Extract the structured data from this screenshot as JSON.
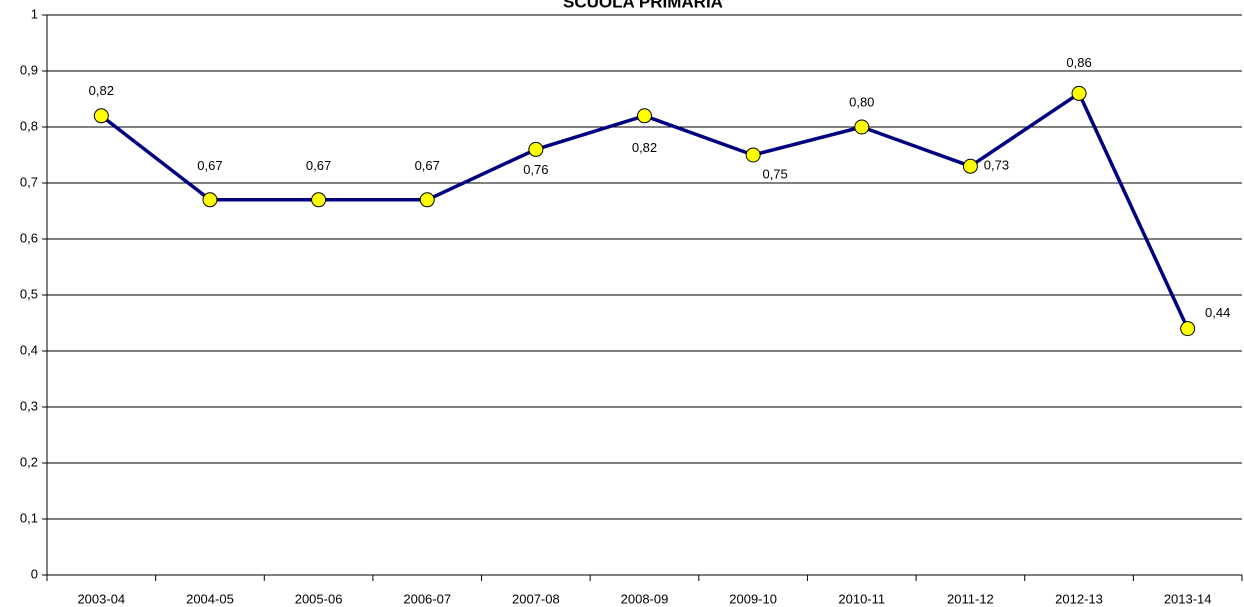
{
  "chart_data": {
    "type": "line",
    "title": "SCUOLA PRIMARIA",
    "categories": [
      "2003-04",
      "2004-05",
      "2005-06",
      "2006-07",
      "2007-08",
      "2008-09",
      "2009-10",
      "2010-11",
      "2011-12",
      "2012-13",
      "2013-14"
    ],
    "series": [
      {
        "name": "SCUOLA PRIMARIA",
        "color": "#000080",
        "marker_color": "#ffff00",
        "values": [
          0.82,
          0.67,
          0.67,
          0.67,
          0.76,
          0.82,
          0.75,
          0.8,
          0.73,
          0.86,
          0.44
        ],
        "value_labels": [
          "0,82",
          "0,67",
          "0,67",
          "0,67",
          "0,76",
          "0,82",
          "0,75",
          "0,80",
          "0,73",
          "0,86",
          "0,44"
        ]
      }
    ],
    "ylim": [
      0,
      1
    ],
    "yticks": [
      0,
      {
        "value": 0.1,
        "label": "0,1"
      },
      {
        "value": 0.2,
        "label": "0,2"
      },
      {
        "value": 0.3,
        "label": "0,3"
      },
      {
        "value": 0.4,
        "label": "0,4"
      },
      {
        "value": 0.5,
        "label": "0,5"
      },
      {
        "value": 0.6,
        "label": "0,6"
      },
      {
        "value": 0.7,
        "label": "0,7"
      },
      {
        "value": 0.8,
        "label": "0,8"
      },
      {
        "value": 0.9,
        "label": "0,9"
      },
      1
    ],
    "grid": true
  }
}
